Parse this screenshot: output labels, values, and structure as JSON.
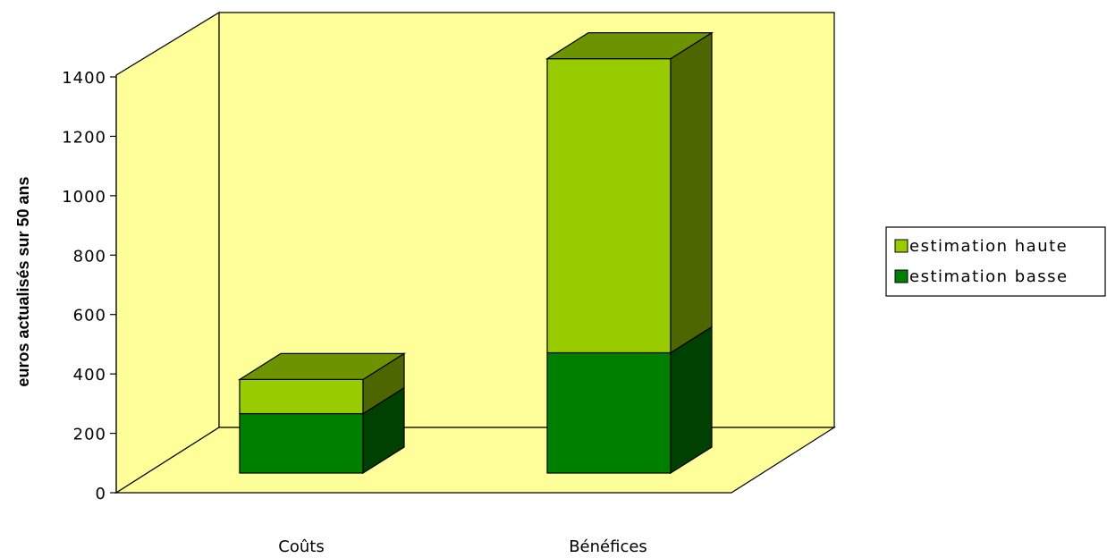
{
  "chart_data": {
    "type": "bar",
    "stacked": true,
    "three_d": true,
    "categories": [
      "Coûts",
      "Bénéfices"
    ],
    "series": [
      {
        "name": "estimation basse",
        "values": [
          200,
          405
        ],
        "color": "#008000"
      },
      {
        "name": "estimation haute",
        "values": [
          115,
          990
        ],
        "color": "#99CC00"
      }
    ],
    "ylabel": "euros actualisés sur 50 ans",
    "ylim": [
      0,
      1400
    ],
    "yticks": [
      0,
      200,
      400,
      600,
      800,
      1000,
      1200,
      1400
    ],
    "ytick_labels": [
      "0",
      "200",
      "400",
      "600",
      "800",
      "1000",
      "1200",
      "1400"
    ],
    "legend_position": "right",
    "wall_color": "#FFFF99"
  }
}
